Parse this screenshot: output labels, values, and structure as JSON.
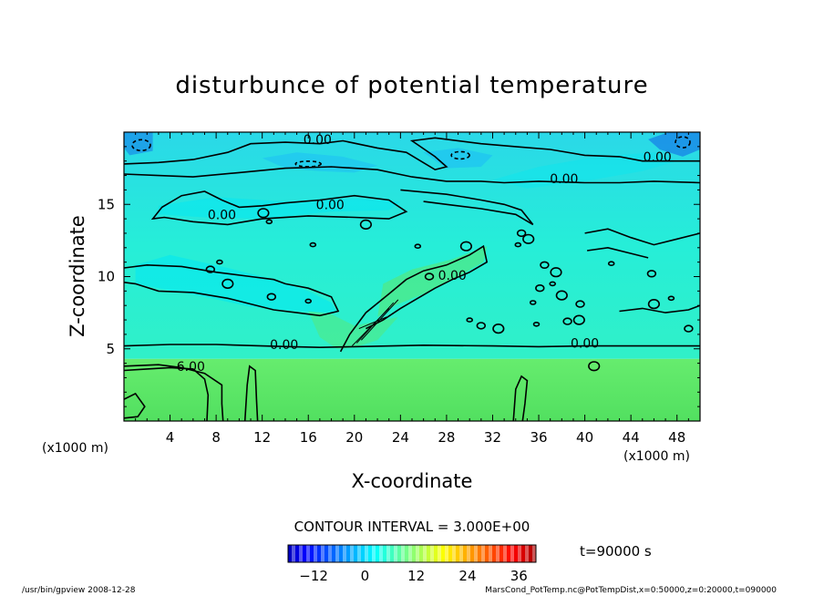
{
  "chart_data": {
    "type": "heatmap",
    "title": "disturbunce of potential temperature",
    "xlabel": "X-coordinate",
    "ylabel": "Z-coordinate",
    "x_unit": "(x1000 m)",
    "y_unit": "(x1000 m)",
    "xlim": [
      0,
      50
    ],
    "ylim": [
      0,
      20
    ],
    "x_ticks": [
      4,
      8,
      12,
      16,
      20,
      24,
      28,
      32,
      36,
      40,
      44,
      48
    ],
    "y_ticks": [
      5,
      10,
      15
    ],
    "contour_interval_label": "CONTOUR INTERVAL = 3.000E+00",
    "time_label": "t=90000 s",
    "colorbar": {
      "ticks": [
        -12,
        0,
        12,
        24,
        36
      ],
      "range": [
        -18,
        40
      ]
    },
    "contour_labels": [
      {
        "text": "0.00",
        "x": 16.8,
        "z": 19.3
      },
      {
        "text": "0.00",
        "x": 46.3,
        "z": 18.1
      },
      {
        "text": "0.00",
        "x": 38.2,
        "z": 16.6
      },
      {
        "text": "0.00",
        "x": 17.9,
        "z": 14.8
      },
      {
        "text": "0.00",
        "x": 8.5,
        "z": 14.1
      },
      {
        "text": "0.00",
        "x": 28.5,
        "z": 9.9
      },
      {
        "text": "0.00",
        "x": 13.9,
        "z": 5.1
      },
      {
        "text": "0.00",
        "x": 40.0,
        "z": 5.2
      },
      {
        "text": "6.00",
        "x": 5.8,
        "z": 3.6
      }
    ],
    "regions": [
      {
        "z_from": 0,
        "z_to": 4.3,
        "value": 6,
        "desc": "lower layer"
      },
      {
        "z_from": 4.3,
        "z_to": 20,
        "value": 0,
        "desc": "upper layer with weak disturbances"
      }
    ]
  },
  "colors": {
    "lower": "#5de86a",
    "upper": "#2eeed4",
    "cyan_patch": "#00e8f4",
    "blue_patch": "#1ab8f8",
    "dark_blue": "#1060e8",
    "contour": "#000000"
  },
  "footer": {
    "left": "/usr/bin/gpview   2008-12-28",
    "right": "MarsCond_PotTemp.nc@PotTempDist,x=0:50000,z=0:20000,t=090000"
  }
}
